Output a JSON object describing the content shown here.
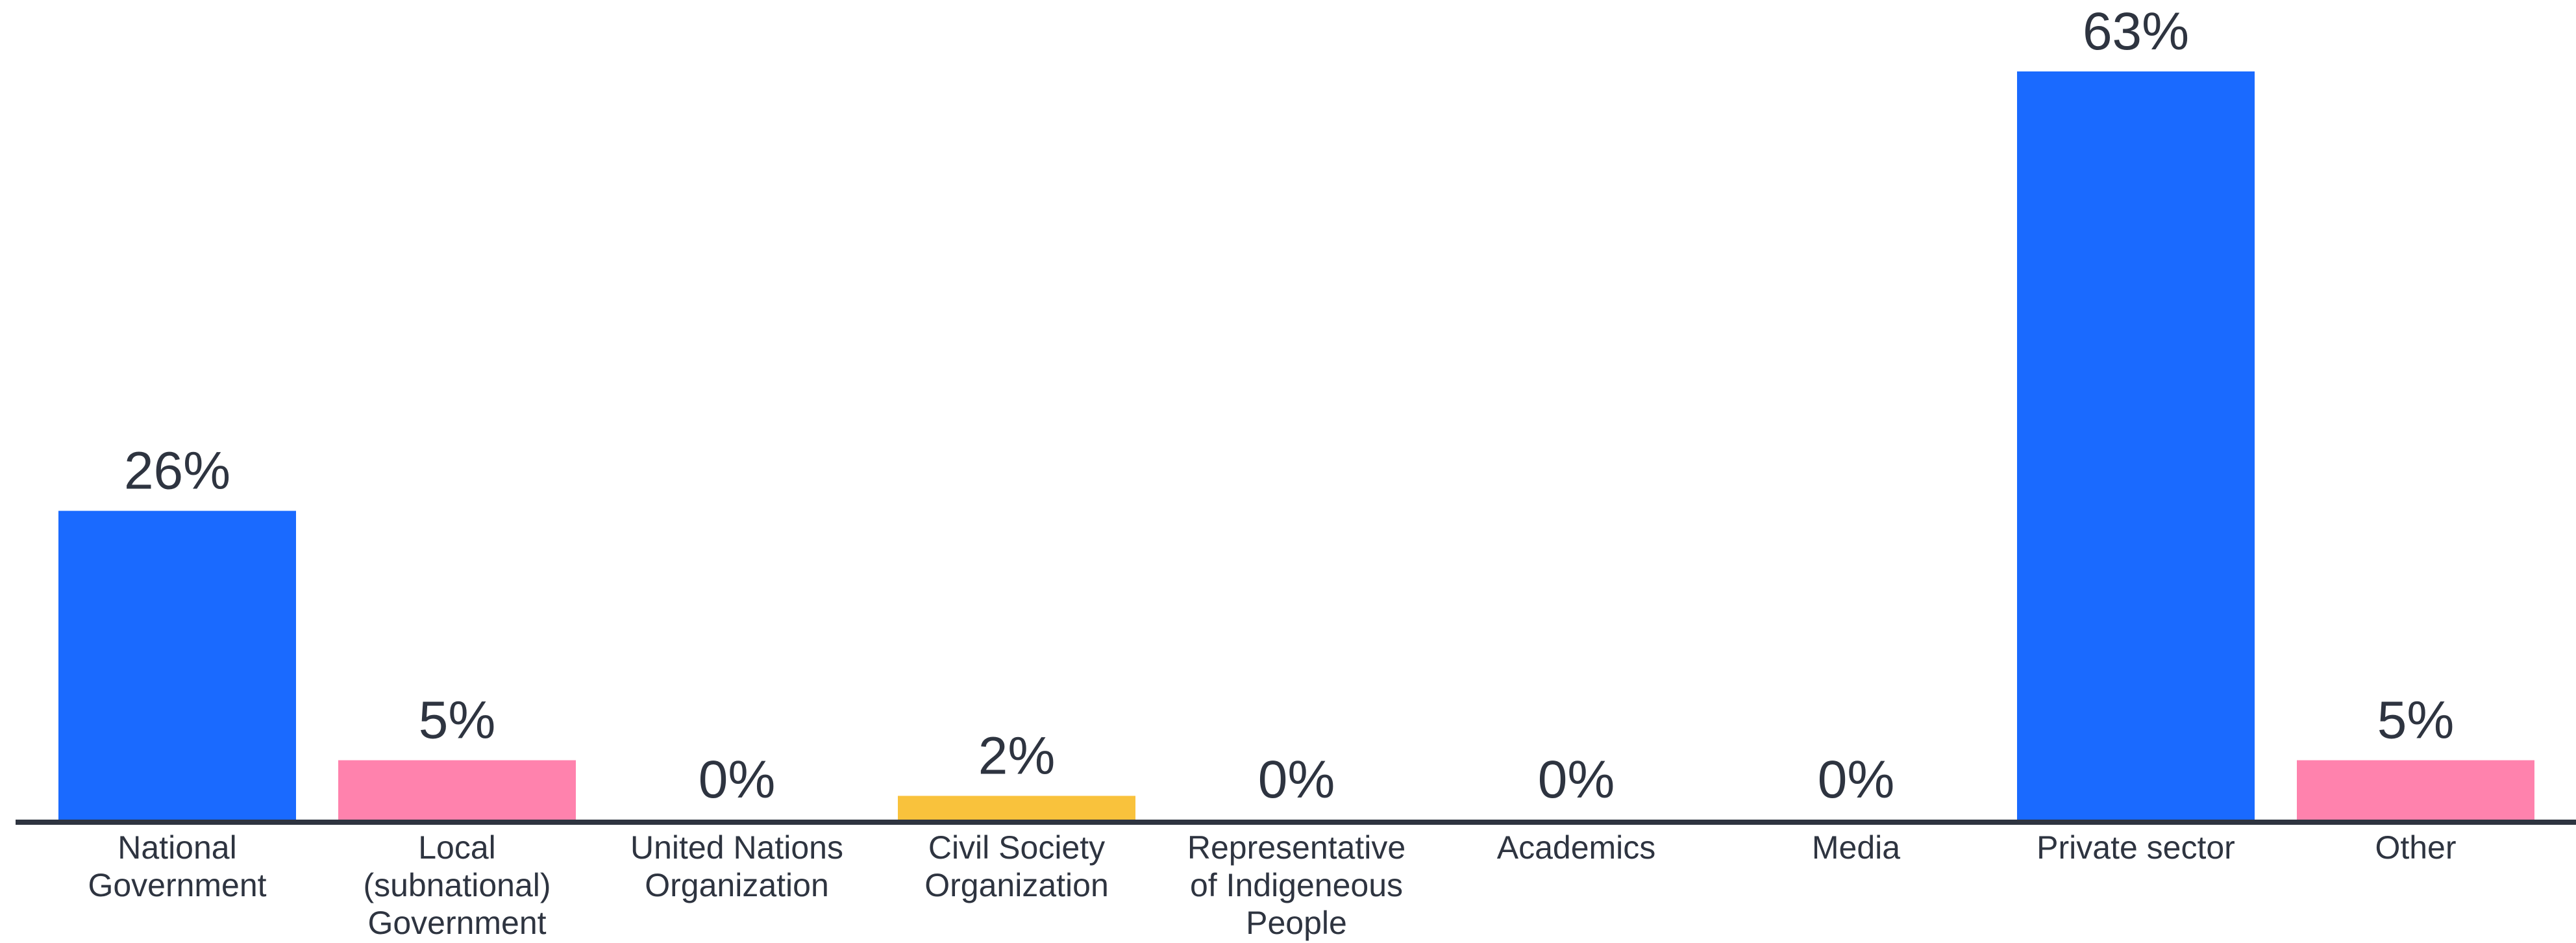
{
  "chart_data": {
    "type": "bar",
    "categories": [
      [
        "National",
        "Government"
      ],
      [
        "Local",
        "(subnational)",
        "Government"
      ],
      [
        "United Nations",
        "Organization"
      ],
      [
        "Civil Society",
        "Organization"
      ],
      [
        "Representative",
        "of Indigeneous",
        "People"
      ],
      [
        "Academics"
      ],
      [
        "Media"
      ],
      [
        "Private sector"
      ],
      [
        "Other"
      ]
    ],
    "values": [
      26,
      5,
      0,
      2,
      0,
      0,
      0,
      63,
      5
    ],
    "value_labels": [
      "26%",
      "5%",
      "0%",
      "2%",
      "0%",
      "0%",
      "0%",
      "63%",
      "5%"
    ],
    "bar_colors": [
      "#1a6aff",
      "#ff82ad",
      "#1a6aff",
      "#f9c23c",
      "#1a6aff",
      "#1a6aff",
      "#1a6aff",
      "#1a6aff",
      "#ff82ad"
    ],
    "axis_color": "#2e3440",
    "ylim": [
      0,
      63
    ],
    "title": "",
    "xlabel": "",
    "ylabel": "",
    "grid": false,
    "legend": "none"
  }
}
